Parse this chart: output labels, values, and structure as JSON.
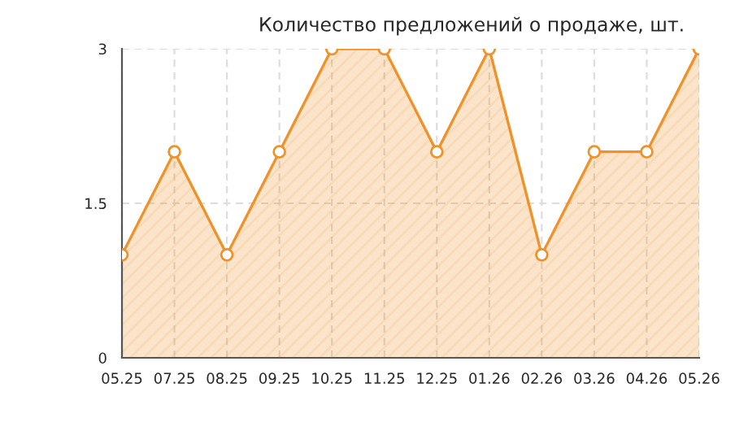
{
  "chart_data": {
    "type": "area",
    "title": "Количество предложений о продаже, шт.",
    "categories": [
      "05.25",
      "07.25",
      "08.25",
      "09.25",
      "10.25",
      "11.25",
      "12.25",
      "01.26",
      "02.26",
      "03.26",
      "04.26",
      "05.26"
    ],
    "series": [
      {
        "color": "#f0922a",
        "values": [
          1,
          2,
          1,
          2,
          3,
          3,
          2,
          3,
          1,
          2,
          2,
          3
        ]
      }
    ],
    "ylim": [
      0,
      3
    ],
    "yticks": [
      0,
      1.5,
      3
    ],
    "grid": true,
    "marker": "circle",
    "line_style": "solid"
  }
}
